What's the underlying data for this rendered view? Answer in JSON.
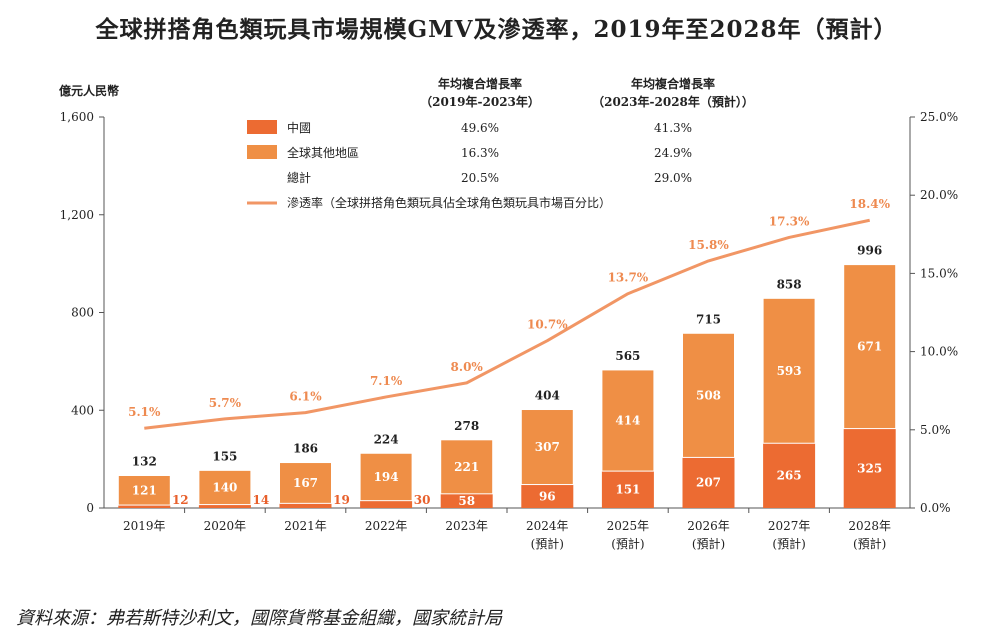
{
  "title": "全球拼搭角色類玩具市場規模GMV及滲透率，2019年至2028年（預計）",
  "source": "資料來源：弗若斯特沙利文，國際貨幣基金組織，國家統計局",
  "colors": {
    "china": "#ec6b32",
    "other": "#ef8f45",
    "line": "#f19665",
    "axis": "#555555"
  },
  "chart_data": {
    "type": "bar",
    "stacked": true,
    "title": "全球拼搭角色類玩具市場規模GMV及滲透率，2019年至2028年（預計）",
    "ylabel": "億元人民幣",
    "ylim": [
      0,
      1600
    ],
    "yticks": [
      "0",
      "400",
      "800",
      "1,200",
      "1,600"
    ],
    "ytick_values": [
      0,
      400,
      800,
      1200,
      1600
    ],
    "y2lim": [
      0,
      25
    ],
    "y2ticks": [
      "0.0%",
      "5.0%",
      "10.0%",
      "15.0%",
      "20.0%",
      "25.0%"
    ],
    "y2tick_values": [
      0,
      5,
      10,
      15,
      20,
      25
    ],
    "categories": [
      "2019年",
      "2020年",
      "2021年",
      "2022年",
      "2023年",
      "2024年",
      "2025年",
      "2026年",
      "2027年",
      "2028年"
    ],
    "category_notes": [
      "",
      "",
      "",
      "",
      "",
      "(預計)",
      "(預計)",
      "(預計)",
      "(預計)",
      "(預計)"
    ],
    "series": [
      {
        "name": "中國",
        "values": [
          12,
          14,
          19,
          30,
          58,
          96,
          151,
          207,
          265,
          325
        ]
      },
      {
        "name": "全球其他地區",
        "values": [
          121,
          140,
          167,
          194,
          221,
          307,
          414,
          508,
          593,
          671
        ]
      }
    ],
    "totals": [
      132,
      155,
      186,
      224,
      278,
      404,
      565,
      715,
      858,
      996
    ],
    "line_series": {
      "name": "滲透率（全球拼搭角色類玩具佔全球角色類玩具市場百分比）",
      "axis": "right",
      "values": [
        5.1,
        5.7,
        6.1,
        7.1,
        8.0,
        10.7,
        13.7,
        15.8,
        17.3,
        18.4
      ]
    },
    "line_labels": [
      "5.1%",
      "5.7%",
      "6.1%",
      "7.1%",
      "8.0%",
      "10.7%",
      "13.7%",
      "15.8%",
      "17.3%",
      "18.4%"
    ],
    "legend": {
      "placement": "top",
      "header1": [
        "年均複合增長率",
        "（2019年-2023年）"
      ],
      "header2": [
        "年均複合增長率",
        "（2023年-2028年（預計））"
      ],
      "rows": [
        {
          "name": "中國",
          "cagr1": "49.6%",
          "cagr2": "41.3%"
        },
        {
          "name": "全球其他地區",
          "cagr1": "16.3%",
          "cagr2": "24.9%"
        },
        {
          "name": "總計",
          "cagr1": "20.5%",
          "cagr2": "29.0%"
        }
      ],
      "line_name": "滲透率（全球拼搭角色類玩具佔全球角色類玩具市場百分比）"
    }
  }
}
